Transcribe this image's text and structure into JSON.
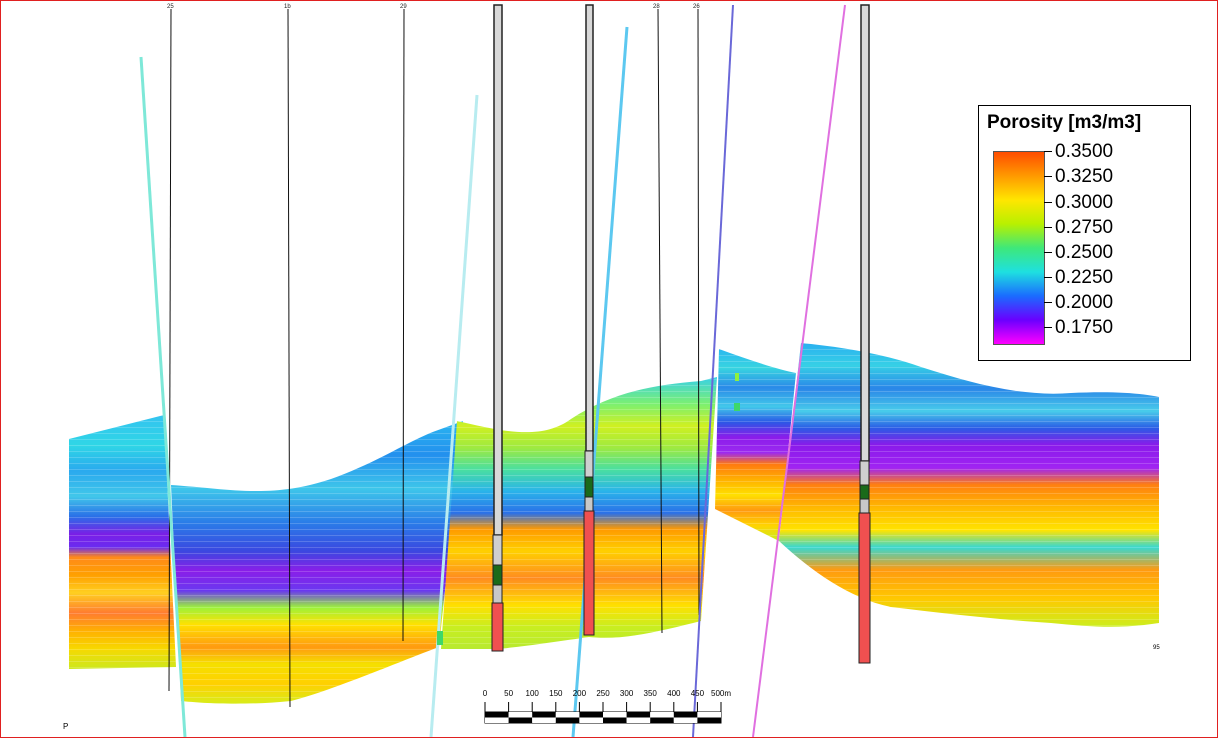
{
  "legend": {
    "title": "Porosity [m3/m3]",
    "ticks": [
      "0.3500",
      "0.3250",
      "0.3000",
      "0.2750",
      "0.2500",
      "0.2250",
      "0.2000",
      "0.1750"
    ],
    "colors": [
      "#ff4d00",
      "#ff9a00",
      "#ffe600",
      "#b8f000",
      "#3ee87a",
      "#1ee0e0",
      "#1a6cff",
      "#6a00ff",
      "#ff00ff"
    ]
  },
  "scale_bar": {
    "labels": [
      "0",
      "50",
      "100",
      "150",
      "200",
      "250",
      "300",
      "350",
      "400",
      "450",
      "500m"
    ]
  },
  "wells": [
    {
      "label": "25"
    },
    {
      "label": "1b"
    },
    {
      "label": "29"
    },
    {
      "label": "28"
    },
    {
      "label": "26"
    }
  ],
  "corner_text": {
    "bottom_left": "P",
    "right_marker": "95"
  }
}
